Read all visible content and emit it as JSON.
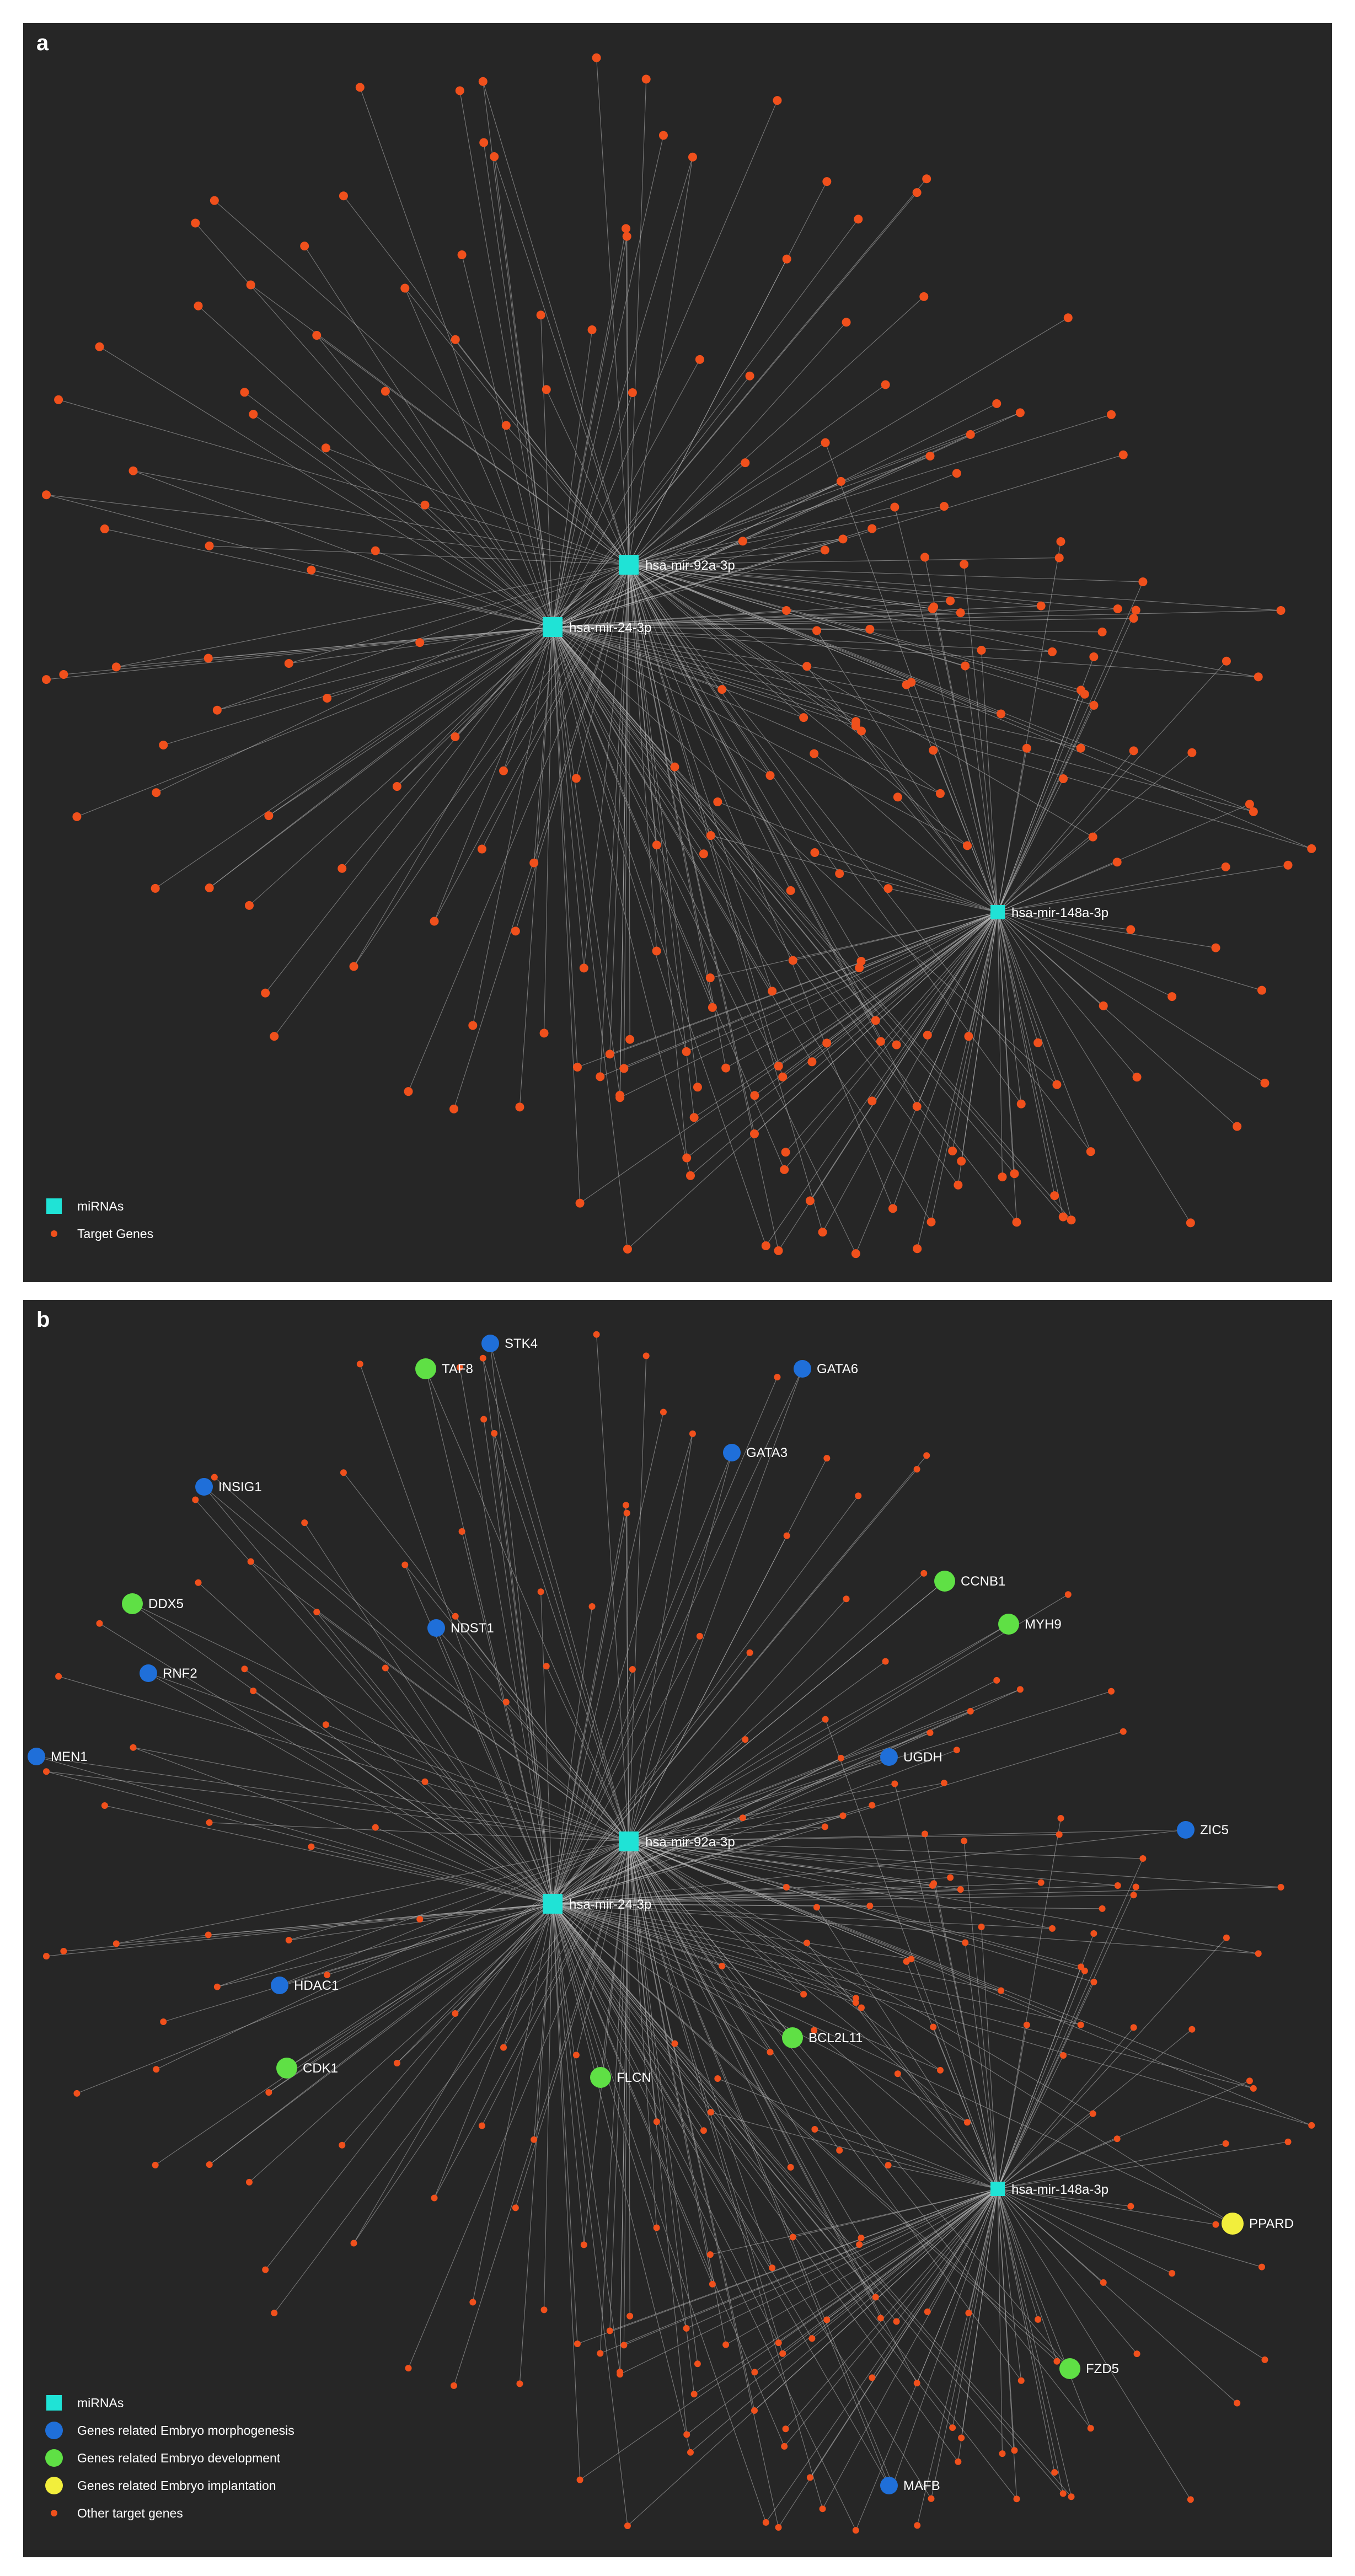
{
  "panels": [
    {
      "label": "a",
      "mirnas": [
        "hsa-mir-92a-3p",
        "hsa-mir-24-3p",
        "hsa-mir-148a-3p"
      ],
      "legend": {
        "mirnas": "miRNAs",
        "targets": "Target Genes"
      }
    },
    {
      "label": "b",
      "mirnas": [
        "hsa-mir-92a-3p",
        "hsa-mir-24-3p",
        "hsa-mir-148a-3p"
      ],
      "highlighted_genes": [
        {
          "name": "STK4",
          "category": "morphogenesis"
        },
        {
          "name": "TAF8",
          "category": "development"
        },
        {
          "name": "GATA6",
          "category": "morphogenesis"
        },
        {
          "name": "GATA3",
          "category": "morphogenesis"
        },
        {
          "name": "INSIG1",
          "category": "morphogenesis"
        },
        {
          "name": "DDX5",
          "category": "development"
        },
        {
          "name": "NDST1",
          "category": "morphogenesis"
        },
        {
          "name": "RNF2",
          "category": "morphogenesis"
        },
        {
          "name": "CCNB1",
          "category": "development"
        },
        {
          "name": "MYH9",
          "category": "development"
        },
        {
          "name": "MEN1",
          "category": "morphogenesis"
        },
        {
          "name": "UGDH",
          "category": "morphogenesis"
        },
        {
          "name": "ZIC5",
          "category": "morphogenesis"
        },
        {
          "name": "HDAC1",
          "category": "morphogenesis"
        },
        {
          "name": "CDK1",
          "category": "development"
        },
        {
          "name": "FLCN",
          "category": "development"
        },
        {
          "name": "BCL2L11",
          "category": "development"
        },
        {
          "name": "PPARD",
          "category": "implantation"
        },
        {
          "name": "FZD5",
          "category": "development"
        },
        {
          "name": "MAFB",
          "category": "morphogenesis"
        }
      ],
      "legend": {
        "mirnas": "miRNAs",
        "morphogenesis": "Genes related Embryo morphogenesis",
        "development": "Genes related Embryo development",
        "implantation": "Genes related Embryo implantation",
        "others": "Other target genes"
      }
    }
  ],
  "colors": {
    "background": "#262626",
    "mirna": "#1fe3d6",
    "target_gene": "#f0501c",
    "morphogenesis": "#1f6fd9",
    "development": "#5fe045",
    "implantation": "#f2ee3c",
    "edge": "#bdbdbd"
  }
}
